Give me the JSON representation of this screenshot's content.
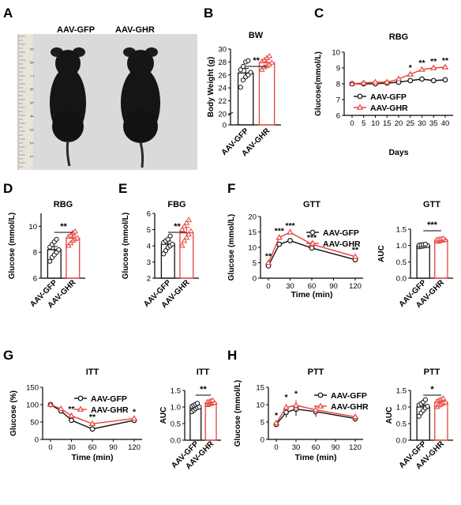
{
  "colors": {
    "gfp": "#111111",
    "ghr": "#e8413a"
  },
  "panel_a": {
    "letter": "A",
    "labels": [
      "AAV-GFP",
      "AAV-GHR"
    ],
    "ruler_numbers": [
      "9",
      "8",
      "7",
      "6",
      "5",
      "4",
      "3",
      "2",
      "1"
    ]
  },
  "chart_data": [
    {
      "panel": "B",
      "type": "bar",
      "title": "BW",
      "ylabel": "Body Weight (g)",
      "categories": [
        "AAV-GFP",
        "AAV-GHR"
      ],
      "values": [
        26.3,
        27.9
      ],
      "errors": [
        0.7,
        0.5
      ],
      "yscale": "broken",
      "ylim": [
        0,
        30
      ],
      "yticks": [
        "0",
        "20",
        "22",
        "24",
        "26",
        "28",
        "30"
      ],
      "points": [
        [
          24.1,
          25.2,
          25.7,
          26.0,
          26.4,
          26.8,
          27.3,
          28.0,
          28.2
        ],
        [
          26.8,
          27.2,
          27.4,
          27.6,
          27.9,
          28.1,
          28.3,
          28.6,
          28.9
        ]
      ],
      "significance": [
        "**"
      ]
    },
    {
      "panel": "C",
      "type": "line",
      "title": "RBG",
      "ylabel": "Glucose(mmol/L)",
      "xlabel": "Days",
      "x": [
        0,
        5,
        10,
        15,
        20,
        25,
        30,
        35,
        40
      ],
      "ylim": [
        6,
        10
      ],
      "yticks": [
        "6",
        "7",
        "8",
        "9",
        "10"
      ],
      "xticks": [
        "0",
        "5",
        "10",
        "15",
        "20",
        "25",
        "30",
        "35",
        "40"
      ],
      "series": [
        {
          "name": "AAV-GFP",
          "values": [
            8.0,
            8.0,
            8.0,
            8.05,
            8.1,
            8.2,
            8.3,
            8.2,
            8.25
          ]
        },
        {
          "name": "AAV-GHR",
          "values": [
            8.0,
            8.05,
            8.1,
            8.1,
            8.3,
            8.6,
            8.9,
            9.0,
            9.05
          ]
        }
      ],
      "annotations": [
        {
          "x": 25,
          "text": "*"
        },
        {
          "x": 30,
          "text": "**"
        },
        {
          "x": 35,
          "text": "**"
        },
        {
          "x": 40,
          "text": "**"
        }
      ]
    },
    {
      "panel": "D",
      "type": "bar",
      "title": "RBG",
      "ylabel": "Glucose (mmol/L)",
      "categories": [
        "AAV-GFP",
        "AAV-GHR"
      ],
      "values": [
        8.2,
        9.1
      ],
      "errors": [
        0.25,
        0.2
      ],
      "ylim": [
        6,
        11
      ],
      "yticks": [
        "6",
        "8",
        "10"
      ],
      "points": [
        [
          7.3,
          7.6,
          7.8,
          8.0,
          8.2,
          8.4,
          8.6,
          8.8,
          9.0
        ],
        [
          8.5,
          8.7,
          8.9,
          9.0,
          9.1,
          9.2,
          9.3,
          9.5,
          9.6
        ]
      ],
      "significance": [
        "**"
      ]
    },
    {
      "panel": "E",
      "type": "bar",
      "title": "FBG",
      "ylabel": "Glucose (mmol/L)",
      "categories": [
        "AAV-GFP",
        "AAV-GHR"
      ],
      "values": [
        4.1,
        4.8
      ],
      "errors": [
        0.2,
        0.35
      ],
      "ylim": [
        2,
        6
      ],
      "yticks": [
        "2",
        "3",
        "4",
        "5",
        "6"
      ],
      "points": [
        [
          3.5,
          3.7,
          3.9,
          4.0,
          4.1,
          4.2,
          4.3,
          4.4,
          4.6
        ],
        [
          4.0,
          4.3,
          4.5,
          4.7,
          4.9,
          5.0,
          5.2,
          5.4,
          5.6
        ]
      ],
      "significance": [
        "**"
      ]
    },
    {
      "panel": "F",
      "type": "line",
      "title": "GTT",
      "ylabel": "Glucose (mmol/L)",
      "xlabel": "Time (min)",
      "x": [
        0,
        15,
        30,
        60,
        120
      ],
      "ylim": [
        0,
        20
      ],
      "yticks": [
        "0",
        "5",
        "10",
        "15",
        "20"
      ],
      "xticks": [
        "0",
        "30",
        "60",
        "90",
        "120"
      ],
      "series": [
        {
          "name": "AAV-GFP",
          "values": [
            4.0,
            11.0,
            12.2,
            9.8,
            6.0
          ]
        },
        {
          "name": "AAV-GHR",
          "values": [
            5.0,
            13.2,
            14.9,
            11.0,
            7.0
          ]
        }
      ],
      "annotations": [
        {
          "x": 0,
          "text": "**"
        },
        {
          "x": 15,
          "text": "***"
        },
        {
          "x": 30,
          "text": "***"
        },
        {
          "x": 60,
          "text": "***"
        },
        {
          "x": 120,
          "text": "**"
        }
      ]
    },
    {
      "panel": "F2",
      "type": "bar",
      "title": "GTT",
      "ylabel": "AUC",
      "categories": [
        "AAV-GFP",
        "AAV-GHR"
      ],
      "values": [
        1.0,
        1.17
      ],
      "errors": [
        0.02,
        0.02
      ],
      "ylim": [
        0,
        1.5
      ],
      "yticks": [
        "0.0",
        "0.5",
        "1.0",
        "1.5"
      ],
      "points": [
        [
          0.96,
          0.97,
          0.98,
          0.99,
          1.0,
          1.01,
          1.02,
          1.03,
          1.04
        ],
        [
          1.12,
          1.13,
          1.15,
          1.16,
          1.17,
          1.18,
          1.19,
          1.2,
          1.22
        ]
      ],
      "significance": [
        "***"
      ]
    },
    {
      "panel": "G",
      "type": "line",
      "title": "ITT",
      "ylabel": "Glucose (%)",
      "xlabel": "Time (min)",
      "x": [
        0,
        15,
        30,
        60,
        120
      ],
      "ylim": [
        0,
        150
      ],
      "yticks": [
        "0",
        "50",
        "100",
        "150"
      ],
      "xticks": [
        "0",
        "30",
        "60",
        "90",
        "120"
      ],
      "series": [
        {
          "name": "AAV-GFP",
          "values": [
            100,
            82,
            55,
            30,
            55
          ]
        },
        {
          "name": "AAV-GHR",
          "values": [
            100,
            88,
            68,
            45,
            60
          ]
        }
      ],
      "annotations": [
        {
          "x": 30,
          "text": "**"
        },
        {
          "x": 60,
          "text": "**"
        },
        {
          "x": 120,
          "text": "*"
        }
      ]
    },
    {
      "panel": "G2",
      "type": "bar",
      "title": "ITT",
      "ylabel": "AUC",
      "categories": [
        "AAV-GFP",
        "AAV-GHR"
      ],
      "values": [
        1.0,
        1.13
      ],
      "errors": [
        0.04,
        0.03
      ],
      "ylim": [
        0,
        1.5
      ],
      "yticks": [
        "0.0",
        "0.5",
        "1.0",
        "1.5"
      ],
      "points": [
        [
          0.86,
          0.9,
          0.95,
          0.98,
          1.0,
          1.02,
          1.05,
          1.08,
          1.11
        ],
        [
          1.06,
          1.08,
          1.1,
          1.12,
          1.13,
          1.15,
          1.16,
          1.18,
          1.2
        ]
      ],
      "significance": [
        "**"
      ]
    },
    {
      "panel": "H",
      "type": "line",
      "title": "PTT",
      "ylabel": "Glucose (mmol/L)",
      "xlabel": "Time (min)",
      "x": [
        0,
        15,
        30,
        60,
        120
      ],
      "ylim": [
        0,
        15
      ],
      "yticks": [
        "0",
        "5",
        "10",
        "15"
      ],
      "xticks": [
        "0",
        "30",
        "60",
        "90",
        "120"
      ],
      "series": [
        {
          "name": "AAV-GFP",
          "values": [
            4.3,
            7.8,
            8.7,
            8.0,
            6.0
          ],
          "errors": [
            0.2,
            1.5,
            2.0,
            1.5,
            1.0
          ]
        },
        {
          "name": "AAV-GHR",
          "values": [
            4.7,
            9.2,
            9.8,
            8.5,
            6.5
          ],
          "errors": [
            0.3,
            1.0,
            1.5,
            1.3,
            0.8
          ]
        }
      ],
      "annotations": [
        {
          "x": 0,
          "text": "*"
        },
        {
          "x": 15,
          "text": "*"
        },
        {
          "x": 30,
          "text": "*"
        }
      ]
    },
    {
      "panel": "H2",
      "type": "bar",
      "title": "PTT",
      "ylabel": "AUC",
      "categories": [
        "AAV-GFP",
        "AAV-GHR"
      ],
      "values": [
        1.0,
        1.14
      ],
      "errors": [
        0.06,
        0.04
      ],
      "ylim": [
        0,
        1.5
      ],
      "yticks": [
        "0.0",
        "0.5",
        "1.0",
        "1.5"
      ],
      "points": [
        [
          0.72,
          0.82,
          0.9,
          0.97,
          1.02,
          1.06,
          1.1,
          1.15,
          1.22
        ],
        [
          1.0,
          1.05,
          1.08,
          1.12,
          1.14,
          1.17,
          1.2,
          1.23,
          1.26
        ]
      ],
      "significance": [
        "*"
      ]
    }
  ]
}
